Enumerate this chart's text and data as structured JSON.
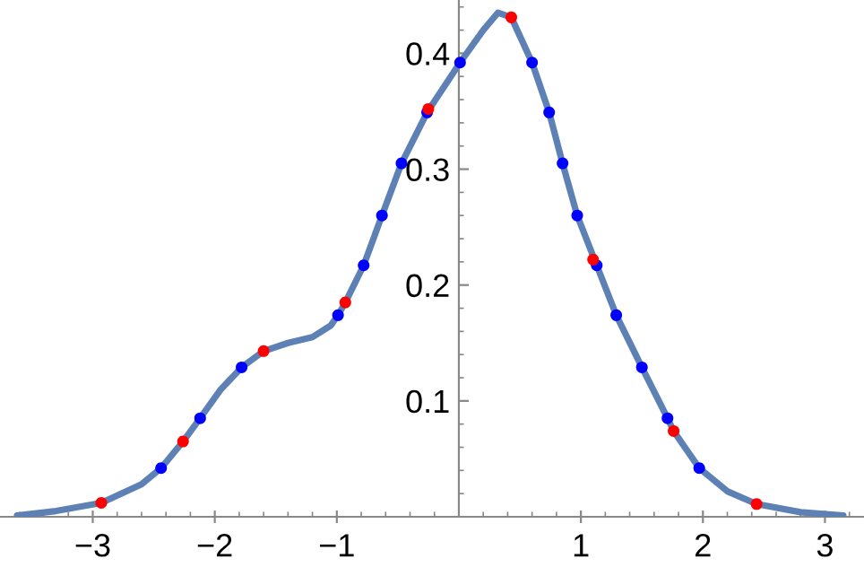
{
  "chart_data": {
    "type": "line",
    "xlim": [
      -3.76,
      3.32
    ],
    "ylim": [
      0,
      0.446
    ],
    "xticks": [
      {
        "value": -3,
        "label": "−3"
      },
      {
        "value": -2,
        "label": "−2"
      },
      {
        "value": -1,
        "label": "−1"
      },
      1,
      2,
      3,
      {
        "value": -3.6,
        "label": null
      },
      {
        "value": -3.4,
        "label": null
      },
      {
        "value": -3.2,
        "label": null
      },
      {
        "value": -2.8,
        "label": null
      },
      {
        "value": -2.6,
        "label": null
      },
      {
        "value": -2.4,
        "label": null
      },
      {
        "value": -2.2,
        "label": null
      },
      {
        "value": -1.8,
        "label": null
      },
      {
        "value": -1.6,
        "label": null
      },
      {
        "value": -1.4,
        "label": null
      },
      {
        "value": -1.2,
        "label": null
      },
      {
        "value": -0.8,
        "label": null
      },
      {
        "value": -0.6,
        "label": null
      },
      {
        "value": -0.4,
        "label": null
      },
      {
        "value": -0.2,
        "label": null
      },
      {
        "value": 0.2,
        "label": null
      },
      {
        "value": 0.4,
        "label": null
      },
      {
        "value": 0.6,
        "label": null
      },
      {
        "value": 0.8,
        "label": null
      },
      {
        "value": 1.2,
        "label": null
      },
      {
        "value": 1.4,
        "label": null
      },
      {
        "value": 1.6,
        "label": null
      },
      {
        "value": 1.8,
        "label": null
      },
      {
        "value": 2.2,
        "label": null
      },
      {
        "value": 2.4,
        "label": null
      },
      {
        "value": 2.6,
        "label": null
      },
      {
        "value": 2.8,
        "label": null
      },
      {
        "value": 3.2,
        "label": null
      }
    ],
    "yticks": [
      0.1,
      0.2,
      0.3,
      0.4,
      {
        "value": 0.02,
        "label": null
      },
      {
        "value": 0.04,
        "label": null
      },
      {
        "value": 0.06,
        "label": null
      },
      {
        "value": 0.08,
        "label": null
      },
      {
        "value": 0.12,
        "label": null
      },
      {
        "value": 0.14,
        "label": null
      },
      {
        "value": 0.16,
        "label": null
      },
      {
        "value": 0.18,
        "label": null
      },
      {
        "value": 0.22,
        "label": null
      },
      {
        "value": 0.24,
        "label": null
      },
      {
        "value": 0.26,
        "label": null
      },
      {
        "value": 0.28,
        "label": null
      },
      {
        "value": 0.32,
        "label": null
      },
      {
        "value": 0.34,
        "label": null
      },
      {
        "value": 0.36,
        "label": null
      },
      {
        "value": 0.38,
        "label": null
      },
      {
        "value": 0.42,
        "label": null
      },
      {
        "value": 0.44,
        "label": null
      }
    ],
    "grid": false,
    "series": [
      {
        "color": "#5e81b5",
        "marker": "none",
        "x": [
          -3.62,
          -3.3,
          -2.93,
          -2.6,
          -2.44,
          -2.26,
          -2.12,
          -1.95,
          -1.78,
          -1.6,
          -1.4,
          -1.2,
          -1.05,
          -0.99,
          -0.93,
          -0.78,
          -0.63,
          -0.47,
          -0.26,
          0.01,
          0.2,
          0.32,
          0.43,
          0.6,
          0.74,
          0.85,
          0.97,
          1.13,
          1.29,
          1.5,
          1.71,
          1.76,
          1.97,
          2.2,
          2.44,
          2.8,
          3.15
        ],
        "values": [
          0.001,
          0.005,
          0.012,
          0.028,
          0.042,
          0.065,
          0.085,
          0.11,
          0.129,
          0.143,
          0.15,
          0.155,
          0.165,
          0.174,
          0.185,
          0.217,
          0.26,
          0.305,
          0.349,
          0.392,
          0.42,
          0.435,
          0.431,
          0.392,
          0.349,
          0.305,
          0.26,
          0.217,
          0.174,
          0.129,
          0.085,
          0.074,
          0.042,
          0.022,
          0.011,
          0.004,
          0.001
        ]
      },
      {
        "type": "scatter",
        "color": "#0000ff",
        "marker": "circle",
        "x": [
          -2.44,
          -2.12,
          -1.78,
          -0.99,
          -0.78,
          -0.63,
          -0.47,
          -0.26,
          0.01,
          0.6,
          0.74,
          0.85,
          0.97,
          1.13,
          1.29,
          1.5,
          1.71,
          1.97
        ],
        "values": [
          0.042,
          0.085,
          0.129,
          0.174,
          0.217,
          0.26,
          0.305,
          0.349,
          0.392,
          0.392,
          0.349,
          0.305,
          0.26,
          0.217,
          0.174,
          0.129,
          0.085,
          0.042
        ]
      },
      {
        "type": "scatter",
        "color": "#ff0000",
        "marker": "circle",
        "x": [
          -2.93,
          -2.26,
          -1.6,
          -0.93,
          -0.25,
          0.43,
          1.1,
          1.76,
          2.44
        ],
        "values": [
          0.012,
          0.065,
          0.143,
          0.185,
          0.352,
          0.431,
          0.222,
          0.074,
          0.011
        ]
      }
    ]
  }
}
